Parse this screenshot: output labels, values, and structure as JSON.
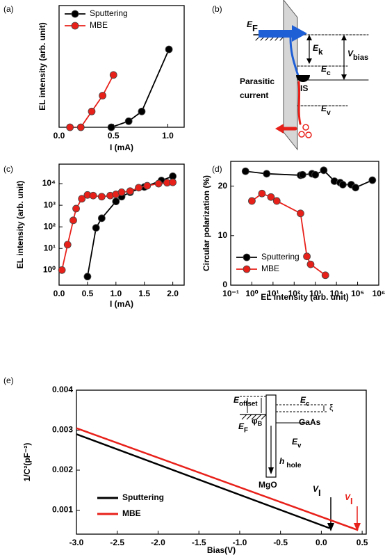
{
  "chart_data": [
    {
      "type": "line",
      "panel": "(a)",
      "x_label": "I (mA)",
      "y_label": "EL intensity (arb. unit)",
      "xlim": [
        0,
        1.15
      ],
      "ylim": [
        0,
        100
      ],
      "xticks": [
        {
          "value": 0,
          "label": "0.0"
        },
        {
          "value": 0.5,
          "label": "0.5"
        },
        {
          "value": 1,
          "label": "1.0"
        }
      ],
      "legend": "upper left",
      "markers": true,
      "series": [
        {
          "name": "Sputtering",
          "color": "#000000",
          "x": [
            0.48,
            0.64,
            0.76,
            1.01
          ],
          "values": [
            0,
            5,
            13,
            64
          ]
        },
        {
          "name": "MBE",
          "color": "#e8201a",
          "x": [
            0.1,
            0.2,
            0.3,
            0.4,
            0.5
          ],
          "values": [
            0,
            0,
            13,
            26,
            43
          ]
        }
      ]
    },
    {
      "type": "line",
      "panel": "(c)",
      "x_label": "I (mA)",
      "y_label": "EL intensity (arb. unit)",
      "xlim": [
        0,
        2.2
      ],
      "ylim": [
        0.2,
        80000
      ],
      "ylog": true,
      "xticks": [
        {
          "value": 0,
          "label": "0.0"
        },
        {
          "value": 0.5,
          "label": "0.5"
        },
        {
          "value": 1,
          "label": "1.0"
        },
        {
          "value": 1.5,
          "label": "1.5"
        },
        {
          "value": 2,
          "label": "2.0"
        }
      ],
      "yticks": [
        {
          "value": 1,
          "label": "10⁰"
        },
        {
          "value": 10,
          "label": "10¹"
        },
        {
          "value": 100,
          "label": "10²"
        },
        {
          "value": 1000,
          "label": "10³"
        },
        {
          "value": 10000,
          "label": "10⁴"
        }
      ],
      "markers": true,
      "series": [
        {
          "name": "Sputtering",
          "color": "#000000",
          "x": [
            0.5,
            0.65,
            0.75,
            1.0,
            1.1,
            1.25,
            1.5,
            1.8,
            2.0
          ],
          "values": [
            0.5,
            90,
            250,
            1500,
            2500,
            4000,
            7000,
            14000,
            22000
          ]
        },
        {
          "name": "MBE",
          "color": "#e8201a",
          "x": [
            0.05,
            0.15,
            0.25,
            0.3,
            0.4,
            0.5,
            0.6,
            0.75,
            0.9,
            1.0,
            1.1,
            1.25,
            1.4,
            1.55,
            1.75,
            1.9,
            2.0
          ],
          "values": [
            1,
            15,
            200,
            700,
            2000,
            3000,
            2800,
            2500,
            2800,
            3200,
            4000,
            4500,
            6500,
            8000,
            10000,
            11000,
            11500
          ]
        }
      ]
    },
    {
      "type": "line",
      "panel": "(d)",
      "x_label": "EL intensity (arb. unit)",
      "y_label": "Circular polarization (%)",
      "xlim": [
        0.1,
        1000000
      ],
      "xlog": true,
      "ylim": [
        0,
        25
      ],
      "xticks": [
        {
          "value": 0.1,
          "label": "10⁻¹"
        },
        {
          "value": 1,
          "label": "10⁰"
        },
        {
          "value": 10,
          "label": "10¹"
        },
        {
          "value": 100,
          "label": "10²"
        },
        {
          "value": 1000,
          "label": "10³"
        },
        {
          "value": 10000,
          "label": "10⁴"
        },
        {
          "value": 100000,
          "label": "10⁵"
        },
        {
          "value": 1000000,
          "label": "10⁶"
        }
      ],
      "yticks": [
        0,
        10,
        20
      ],
      "legend": "lower left",
      "markers": true,
      "series": [
        {
          "name": "Sputtering",
          "color": "#000000",
          "x": [
            0.5,
            5,
            200,
            250,
            700,
            1000,
            2500,
            8000,
            15000,
            20000,
            50000,
            80000,
            500000
          ],
          "values": [
            23,
            22.5,
            22.2,
            22.3,
            22.5,
            22.3,
            23.2,
            21,
            20.7,
            20.3,
            20.3,
            19.7,
            21.2
          ]
        },
        {
          "name": "MBE",
          "color": "#e8201a",
          "x": [
            1,
            3,
            8,
            15,
            200,
            400,
            600,
            3000
          ],
          "values": [
            17,
            18.5,
            17.8,
            17,
            14.5,
            5.8,
            4.2,
            2
          ]
        }
      ]
    },
    {
      "type": "line",
      "panel": "(e)",
      "x_label": "Bias(V)",
      "y_label": "1/C²(pF⁻²)",
      "xlim": [
        -3,
        0.55
      ],
      "ylim": [
        0.0004,
        0.004
      ],
      "xticks": [
        {
          "value": -3,
          "label": "-3.0"
        },
        {
          "value": -2.5,
          "label": "-2.5"
        },
        {
          "value": -2,
          "label": "-2.0"
        },
        {
          "value": -1.5,
          "label": "-1.5"
        },
        {
          "value": -1,
          "label": "-1.0"
        },
        {
          "value": -0.5,
          "label": "-0.5"
        },
        {
          "value": 0,
          "label": "0.0"
        },
        {
          "value": 0.5,
          "label": "0.5"
        }
      ],
      "yticks": [
        0.001,
        0.002,
        0.003,
        0.004
      ],
      "legend": "lower left",
      "markers": false,
      "series": [
        {
          "name": "Sputtering",
          "color": "#000000",
          "x": [
            -3,
            0.1
          ],
          "values": [
            0.0029,
            0.00055
          ]
        },
        {
          "name": "MBE",
          "color": "#e8201a",
          "x": [
            -3,
            0.45
          ],
          "values": [
            0.00305,
            0.0005
          ]
        }
      ]
    }
  ],
  "diagram_b": {
    "panel": "(b)",
    "E_F": {
      "main": "E",
      "sub": "F"
    },
    "E_k": {
      "main": "E",
      "sub": "k"
    },
    "V_bias": {
      "main": "V",
      "sub": "bias"
    },
    "E_c": {
      "main": "E",
      "sub": "c"
    },
    "E_v": {
      "main": "E",
      "sub": "v"
    },
    "IS": "IS",
    "parasitic_current": [
      "Parasitic",
      "current"
    ]
  },
  "inset_e": {
    "E_offset": {
      "main": "E",
      "sub": "offset"
    },
    "phi_B": {
      "main": "φ",
      "sub": "B"
    },
    "E_c": {
      "main": "E",
      "sub": "c"
    },
    "xi": "ξ",
    "E_F": {
      "main": "E",
      "sub": "F"
    },
    "GaAs": "GaAs",
    "E_v": {
      "main": "E",
      "sub": "v"
    },
    "hole": {
      "main": "h",
      "sub": " hole"
    },
    "MgO": "MgO",
    "V_I_black": {
      "main": "V",
      "sub": "I"
    },
    "V_I_red": {
      "main": "V",
      "sub": "I"
    }
  }
}
